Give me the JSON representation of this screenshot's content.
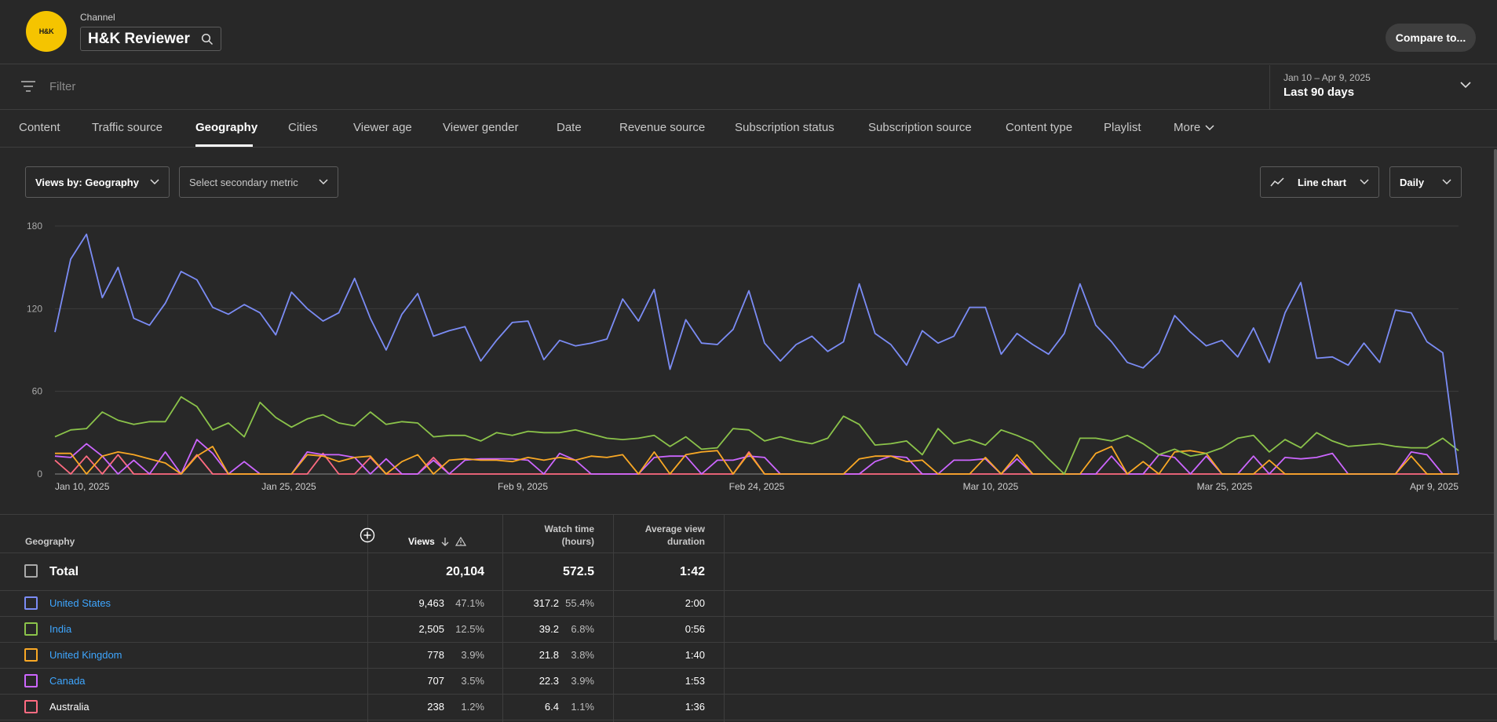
{
  "header": {
    "avatar_text": "H&K",
    "channel_label": "Channel",
    "channel_name": "H&K Reviewer",
    "compare_label": "Compare to..."
  },
  "filter": {
    "placeholder": "Filter"
  },
  "date": {
    "range": "Jan 10 – Apr 9, 2025",
    "label": "Last 90 days"
  },
  "tabs": [
    {
      "label": "Content",
      "active": false
    },
    {
      "label": "Traffic source",
      "active": false
    },
    {
      "label": "Geography",
      "active": true
    },
    {
      "label": "Cities",
      "active": false
    },
    {
      "label": "Viewer age",
      "active": false
    },
    {
      "label": "Viewer gender",
      "active": false
    },
    {
      "label": "Date",
      "active": false
    },
    {
      "label": "Revenue source",
      "active": false
    },
    {
      "label": "Subscription status",
      "active": false
    },
    {
      "label": "Subscription source",
      "active": false
    },
    {
      "label": "Content type",
      "active": false
    },
    {
      "label": "Playlist",
      "active": false
    },
    {
      "label": "More",
      "active": false
    }
  ],
  "controls": {
    "metric": "Views by: Geography",
    "secondary": "Select secondary metric",
    "chart_type": "Line chart",
    "interval": "Daily"
  },
  "chart_data": {
    "type": "line",
    "y_ticks": [
      "180",
      "120",
      "60",
      "0"
    ],
    "ylim": [
      0,
      180
    ],
    "x_ticks": [
      "Jan 10, 2025",
      "Jan 25, 2025",
      "Feb 9, 2025",
      "Feb 24, 2025",
      "Mar 10, 2025",
      "Mar 25, 2025",
      "Apr 9, 2025"
    ],
    "grid": true,
    "series": [
      {
        "color": "#7b8cf5",
        "values": [
          103,
          156,
          174,
          128,
          150,
          113,
          108,
          124,
          147,
          141,
          121,
          116,
          123,
          117,
          101,
          132,
          120,
          111,
          117,
          142,
          113,
          90,
          116,
          131,
          100,
          104,
          107,
          82,
          97,
          110,
          111,
          83,
          97,
          93,
          95,
          98,
          127,
          111,
          134,
          76,
          112,
          95,
          94,
          105,
          133,
          95,
          82,
          94,
          100,
          89,
          96,
          138,
          102,
          94,
          79,
          104,
          95,
          100,
          121,
          121,
          87,
          102,
          94,
          87,
          102,
          138,
          108,
          96,
          81,
          77,
          88,
          115,
          103,
          93,
          97,
          85,
          106,
          81,
          117,
          139,
          84,
          85,
          79,
          95,
          81,
          119,
          117,
          96,
          88,
          0
        ]
      },
      {
        "color": "#8bc34a",
        "values": [
          27,
          32,
          33,
          45,
          39,
          36,
          38,
          38,
          56,
          49,
          32,
          37,
          27,
          52,
          41,
          34,
          40,
          43,
          37,
          35,
          45,
          36,
          38,
          37,
          27,
          28,
          28,
          24,
          30,
          28,
          31,
          30,
          30,
          32,
          29,
          26,
          25,
          26,
          28,
          20,
          27,
          18,
          19,
          33,
          32,
          24,
          27,
          24,
          22,
          26,
          42,
          36,
          21,
          22,
          24,
          14,
          33,
          22,
          25,
          21,
          32,
          28,
          23,
          11,
          0,
          26,
          26,
          24,
          28,
          22,
          14,
          18,
          13,
          15,
          19,
          26,
          28,
          16,
          25,
          19,
          30,
          24,
          20,
          21,
          22,
          20,
          19,
          19,
          26,
          17
        ]
      },
      {
        "color": "#f9a825",
        "values": [
          15,
          15,
          0,
          13,
          16,
          14,
          11,
          8,
          0,
          13,
          20,
          0,
          0,
          0,
          0,
          0,
          14,
          13,
          9,
          12,
          13,
          0,
          9,
          14,
          0,
          10,
          11,
          10,
          10,
          9,
          12,
          10,
          12,
          10,
          13,
          12,
          14,
          0,
          16,
          0,
          14,
          16,
          17,
          0,
          15,
          0,
          0,
          0,
          0,
          0,
          0,
          11,
          13,
          13,
          9,
          10,
          0,
          0,
          0,
          12,
          0,
          14,
          0,
          0,
          0,
          0,
          15,
          20,
          0,
          9,
          0,
          16,
          17,
          15,
          0,
          0,
          0,
          10,
          0,
          0,
          0,
          0,
          0,
          0,
          0,
          0,
          13,
          0,
          0,
          0
        ]
      },
      {
        "color": "#cc66ff",
        "values": [
          13,
          12,
          22,
          13,
          0,
          10,
          0,
          16,
          0,
          25,
          15,
          0,
          9,
          0,
          0,
          0,
          16,
          14,
          14,
          12,
          0,
          11,
          0,
          0,
          10,
          0,
          10,
          11,
          11,
          11,
          10,
          0,
          15,
          10,
          0,
          0,
          0,
          0,
          12,
          13,
          13,
          0,
          10,
          10,
          13,
          12,
          0,
          0,
          0,
          0,
          0,
          0,
          9,
          13,
          12,
          0,
          0,
          10,
          10,
          11,
          0,
          11,
          0,
          0,
          0,
          0,
          0,
          13,
          0,
          0,
          14,
          12,
          0,
          13,
          0,
          0,
          13,
          0,
          12,
          11,
          12,
          15,
          0,
          0,
          0,
          0,
          16,
          14,
          0,
          0
        ]
      },
      {
        "color": "#ff6b81",
        "values": [
          10,
          0,
          13,
          0,
          14,
          0,
          0,
          0,
          0,
          14,
          0,
          0,
          0,
          0,
          0,
          0,
          0,
          15,
          0,
          0,
          12,
          0,
          0,
          0,
          12,
          0,
          0,
          0,
          0,
          0,
          0,
          0,
          0,
          0,
          0,
          0,
          0,
          0,
          0,
          0,
          0,
          0,
          0,
          0,
          16,
          0,
          0,
          0,
          0,
          0,
          0,
          0,
          0,
          0,
          0,
          0,
          0,
          0,
          0,
          0,
          0,
          0,
          0,
          0,
          0,
          0,
          0,
          0,
          0,
          0,
          0,
          0,
          0,
          0,
          0,
          0,
          0,
          0,
          0,
          0,
          0,
          0,
          0,
          0,
          0,
          0,
          0,
          0,
          0,
          0
        ]
      }
    ]
  },
  "table": {
    "headers": {
      "geography": "Geography",
      "views": "Views",
      "watch_time": "Watch time (hours)",
      "avg_view": "Average view duration"
    },
    "total": {
      "label": "Total",
      "views": "20,104",
      "watch": "572.5",
      "avg": "1:42"
    },
    "rows": [
      {
        "name": "United States",
        "link": true,
        "color": "#7b8cf5",
        "views": "9,463",
        "views_pct": "47.1%",
        "watch": "317.2",
        "watch_pct": "55.4%",
        "avg": "2:00"
      },
      {
        "name": "India",
        "link": true,
        "color": "#8bc34a",
        "views": "2,505",
        "views_pct": "12.5%",
        "watch": "39.2",
        "watch_pct": "6.8%",
        "avg": "0:56"
      },
      {
        "name": "United Kingdom",
        "link": true,
        "color": "#f9a825",
        "views": "778",
        "views_pct": "3.9%",
        "watch": "21.8",
        "watch_pct": "3.8%",
        "avg": "1:40"
      },
      {
        "name": "Canada",
        "link": true,
        "color": "#cc66ff",
        "views": "707",
        "views_pct": "3.5%",
        "watch": "22.3",
        "watch_pct": "3.9%",
        "avg": "1:53"
      },
      {
        "name": "Australia",
        "link": false,
        "color": "#ff6b81",
        "views": "238",
        "views_pct": "1.2%",
        "watch": "6.4",
        "watch_pct": "1.1%",
        "avg": "1:36"
      }
    ]
  }
}
